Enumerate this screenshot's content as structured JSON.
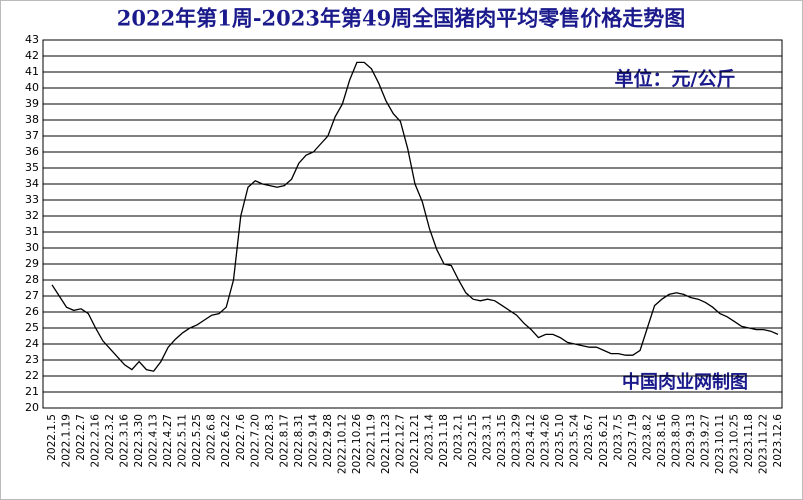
{
  "chart_data": {
    "type": "line",
    "title": "2022年第1周-2023年第49周全国猪肉平均零售价格走势图",
    "annotations": [
      "单位：元/公斤",
      "中国肉业网制图"
    ],
    "categories": [
      "2022.1.5",
      null,
      "2022.1.19",
      null,
      "2022.2.7",
      null,
      "2022.2.16",
      null,
      "2022.3.2",
      null,
      "2022.3.16",
      null,
      "2022.3.30",
      null,
      "2022.4.13",
      null,
      "2022.4.27",
      null,
      "2022.5.11",
      null,
      "2022.5.25",
      null,
      "2022.6.8",
      null,
      "2022.6.22",
      null,
      "2022.7.6",
      null,
      "2022.7.20",
      null,
      "2022.8.3",
      null,
      "2022.8.17",
      null,
      "2022.8.31",
      null,
      "2022.9.14",
      null,
      "2022.9.28",
      null,
      "2022.10.12",
      null,
      "2022.10.26",
      null,
      "2022.11.9",
      null,
      "2022.11.23",
      null,
      "2022.12.7",
      null,
      "2022.12.21",
      null,
      "2023.1.4",
      null,
      "2023.1.18",
      null,
      "2023.2.1",
      null,
      "2023.2.15",
      null,
      "2023.3.1",
      null,
      "2023.3.15",
      null,
      "2023.3.29",
      null,
      "2023.4.12",
      null,
      "2023.4.26",
      null,
      "2023.5.10",
      null,
      "2023.5.24",
      null,
      "2023.6.7",
      null,
      "2023.6.21",
      null,
      "2023.7.5",
      null,
      "2023.7.19",
      null,
      "2023.8.2",
      null,
      "2023.8.16",
      null,
      "2023.8.30",
      null,
      "2023.9.13",
      null,
      "2023.9.27",
      null,
      "2023.10.11",
      null,
      "2023.10.25",
      null,
      "2023.11.8",
      null,
      "2023.11.22",
      null,
      "2023.12.6"
    ],
    "values": [
      27.7,
      27.0,
      26.3,
      26.1,
      26.2,
      25.9,
      25.0,
      24.2,
      23.7,
      23.2,
      22.7,
      22.4,
      22.9,
      22.4,
      22.3,
      22.9,
      23.8,
      24.3,
      24.7,
      25.0,
      25.2,
      25.5,
      25.8,
      25.9,
      26.3,
      28.0,
      32.0,
      33.8,
      34.2,
      34.0,
      33.9,
      33.8,
      33.9,
      34.3,
      35.3,
      35.8,
      36.0,
      36.5,
      37.0,
      38.2,
      39.0,
      40.5,
      41.6,
      41.6,
      41.2,
      40.3,
      39.2,
      38.4,
      37.9,
      36.2,
      34.0,
      32.9,
      31.2,
      29.9,
      29.0,
      28.9,
      28.0,
      27.2,
      26.8,
      26.7,
      26.8,
      26.7,
      26.4,
      26.1,
      25.8,
      25.3,
      24.9,
      24.4,
      24.6,
      24.6,
      24.4,
      24.1,
      24.0,
      23.9,
      23.8,
      23.8,
      23.6,
      23.4,
      23.4,
      23.3,
      23.3,
      23.6,
      25.0,
      26.4,
      26.8,
      27.1,
      27.2,
      27.1,
      26.9,
      26.8,
      26.6,
      26.3,
      25.9,
      25.7,
      25.4,
      25.1,
      25.0,
      24.9,
      24.9,
      24.8,
      24.6
    ],
    "color": "#000000",
    "ylim": [
      20,
      43
    ],
    "yticks": [
      20,
      21,
      22,
      23,
      24,
      25,
      26,
      27,
      28,
      29,
      30,
      31,
      32,
      33,
      34,
      35,
      36,
      37,
      38,
      39,
      40,
      41,
      42,
      43
    ],
    "grid": true
  }
}
